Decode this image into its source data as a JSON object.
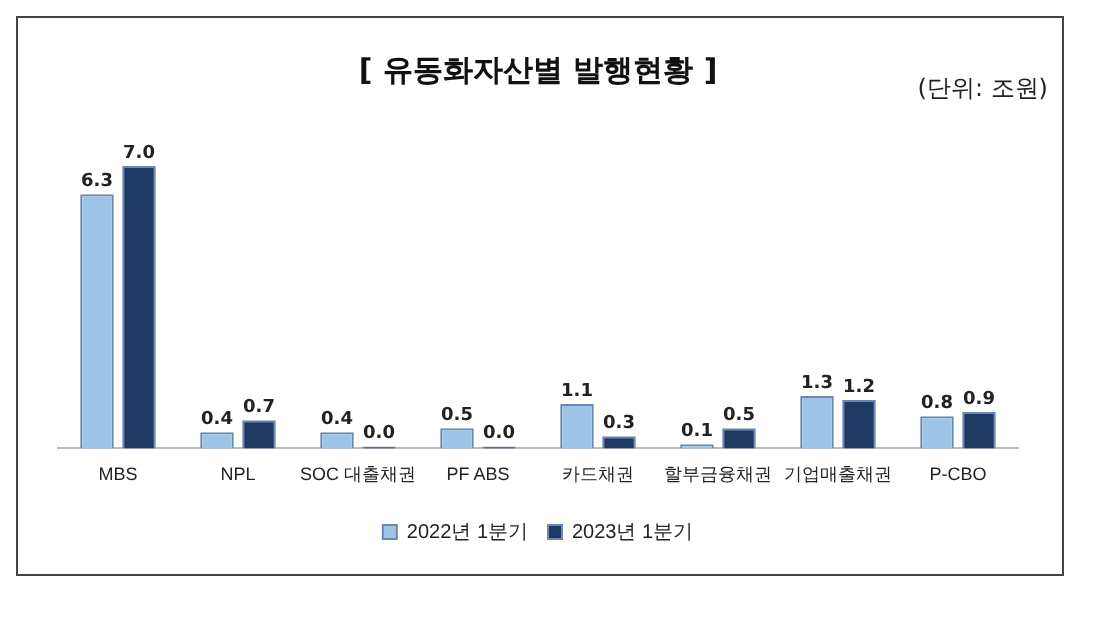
{
  "chart_data": {
    "type": "bar",
    "title": "[ 유동화자산별 발행현황 ]",
    "annotations": [
      "(단위: 조원)"
    ],
    "categories": [
      "MBS",
      "NPL",
      "SOC 대출채권",
      "PF ABS",
      "카드채권",
      "할부금융채권",
      "기업매출채권",
      "P-CBO"
    ],
    "series": [
      {
        "name": "2022년 1분기",
        "color": "#9dc3e6",
        "values": [
          6.3,
          0.4,
          0.4,
          0.5,
          1.1,
          0.1,
          1.3,
          0.8
        ],
        "value_labels": [
          "6.3",
          "0.4",
          "0.4",
          "0.5",
          "1.1",
          "0.1",
          "1.3",
          "0.8"
        ]
      },
      {
        "name": "2023년 1분기",
        "color": "#1f3864",
        "values": [
          7.0,
          0.7,
          0.0,
          0.0,
          0.3,
          0.5,
          1.2,
          0.9
        ],
        "value_labels": [
          "7.0",
          "0.7",
          "0.0",
          "0.0",
          "0.3",
          "0.5",
          "1.2",
          "0.9"
        ]
      }
    ],
    "grid": false,
    "legend": "bottom"
  }
}
